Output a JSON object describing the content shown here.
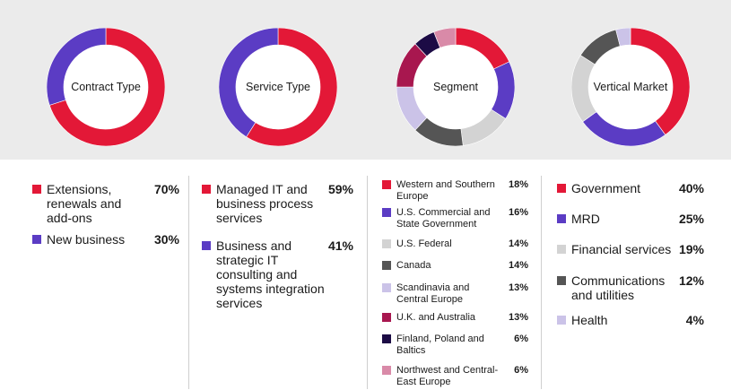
{
  "chart_data": [
    {
      "type": "pie",
      "title": "Contract Type",
      "categories": [
        "Extensions, renewals and add-ons",
        "New business"
      ],
      "values": [
        70,
        30
      ],
      "value_labels": [
        "70%",
        "30%"
      ],
      "colors": [
        "#e31837",
        "#5b3cc4"
      ]
    },
    {
      "type": "pie",
      "title": "Service Type",
      "categories": [
        "Managed IT and business process services",
        "Business and strategic IT consulting and systems integration services"
      ],
      "values": [
        59,
        41
      ],
      "value_labels": [
        "59%",
        "41%"
      ],
      "colors": [
        "#e31837",
        "#5b3cc4"
      ]
    },
    {
      "type": "pie",
      "title": "Segment",
      "categories": [
        "Western and Southern Europe",
        "U.S. Commercial and State Government",
        "U.S. Federal",
        "Canada",
        "Scandinavia and Central Europe",
        "U.K. and Australia",
        "Finland, Poland and Baltics",
        "Northwest and Central-East Europe"
      ],
      "values": [
        18,
        16,
        14,
        14,
        13,
        13,
        6,
        6
      ],
      "value_labels": [
        "18%",
        "16%",
        "14%",
        "14%",
        "13%",
        "13%",
        "6%",
        "6%"
      ],
      "colors": [
        "#e31837",
        "#5b3cc4",
        "#d3d3d3",
        "#555555",
        "#cbc3e8",
        "#a8174f",
        "#1c0b45",
        "#d98aa8"
      ]
    },
    {
      "type": "pie",
      "title": "Vertical Market",
      "categories": [
        "Government",
        "MRD",
        "Financial services",
        "Communications and utilities",
        "Health"
      ],
      "values": [
        40,
        25,
        19,
        12,
        4
      ],
      "value_labels": [
        "40%",
        "25%",
        "19%",
        "12%",
        "4%"
      ],
      "colors": [
        "#e31837",
        "#5b3cc4",
        "#d3d3d3",
        "#555555",
        "#cbc3e8"
      ]
    }
  ]
}
